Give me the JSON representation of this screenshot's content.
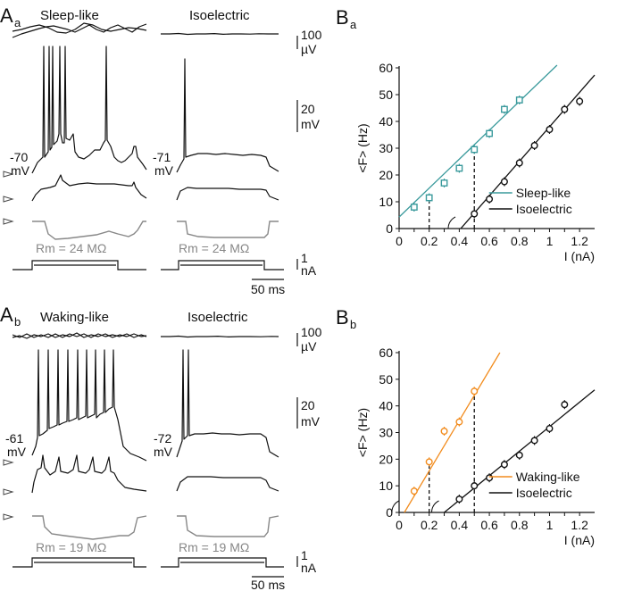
{
  "panels": {
    "Aa": {
      "letter": "A",
      "sub": "a",
      "title_left": "Sleep-like",
      "title_right": "Isoelectric",
      "vm_left": [
        "-70",
        "mV"
      ],
      "vm_right": [
        "-71",
        "mV"
      ],
      "rm_left": "Rm = 24 MΩ",
      "rm_right": "Rm = 24 MΩ"
    },
    "Ab": {
      "letter": "A",
      "sub": "b",
      "title_left": "Waking-like",
      "title_right": "Isoelectric",
      "vm_left": [
        "-61",
        "mV"
      ],
      "vm_right": [
        "-72",
        "mV"
      ],
      "rm_left": "Rm = 19 MΩ",
      "rm_right": "Rm = 19 MΩ"
    },
    "Ba": {
      "letter": "B",
      "sub": "a"
    },
    "Bb": {
      "letter": "B",
      "sub": "b"
    }
  },
  "scale_bars": {
    "lfp": [
      "100",
      "µV"
    ],
    "vm": [
      "20",
      "mV"
    ],
    "current": [
      "1",
      "nA"
    ],
    "time": "50 ms"
  },
  "colors": {
    "sleep": "#3a9a9c",
    "waking": "#f28c1e",
    "iso": "#111111",
    "grey_trace": "#888888"
  },
  "chart_data": [
    {
      "type": "scatter",
      "panel": "Ba",
      "xlabel": "I (nA)",
      "ylabel": "<F> (Hz)",
      "xlim": [
        0,
        1.3
      ],
      "ylim": [
        0,
        60
      ],
      "xticks": [
        "0",
        "0.1",
        "0.2",
        "0.3",
        "0.4",
        "0.5",
        "0.6",
        "0.7",
        "0.8",
        "0.9",
        "1",
        "1.1",
        "1.2"
      ],
      "yticks": [
        "0",
        "10",
        "20",
        "30",
        "40",
        "50",
        "60"
      ],
      "legend_position": "bottom-right",
      "series": [
        {
          "name": "Sleep-like",
          "color": "#3a9a9c",
          "square_markers": true,
          "x": [
            0.1,
            0.2,
            0.3,
            0.4,
            0.5,
            0.6,
            0.7,
            0.8
          ],
          "y": [
            8,
            11.5,
            17,
            22.5,
            29.5,
            35.5,
            44.5,
            48
          ],
          "fit": [
            [
              0,
              4.3
            ],
            [
              1.05,
              61
            ]
          ]
        },
        {
          "name": "Isoelectric",
          "color": "#111111",
          "square_markers": false,
          "x": [
            0.5,
            0.6,
            0.7,
            0.8,
            0.9,
            1.0,
            1.1,
            1.2
          ],
          "y": [
            5.5,
            11,
            17.5,
            24.5,
            31,
            37,
            44.5,
            47.5
          ],
          "fit": [
            [
              0.41,
              0
            ],
            [
              1.3,
              57.3
            ]
          ]
        }
      ],
      "dashed_x": [
        0.2,
        0.5
      ],
      "dashed_top": [
        11.2,
        29.3
      ]
    },
    {
      "type": "scatter",
      "panel": "Bb",
      "xlabel": "I (nA)",
      "ylabel": "<F> (Hz)",
      "xlim": [
        0,
        1.3
      ],
      "ylim": [
        0,
        60
      ],
      "xticks": [
        "0",
        "0.1",
        "0.2",
        "0.3",
        "0.4",
        "0.5",
        "0.6",
        "0.7",
        "0.8",
        "0.9",
        "1",
        "1.1",
        "1.2"
      ],
      "yticks": [
        "0",
        "10",
        "20",
        "30",
        "40",
        "50",
        "60"
      ],
      "legend_position": "bottom-right",
      "series": [
        {
          "name": "Waking-like",
          "color": "#f28c1e",
          "square_markers": false,
          "x": [
            0.1,
            0.2,
            0.3,
            0.4,
            0.5
          ],
          "y": [
            8,
            19,
            30.5,
            34,
            45.5
          ],
          "fit": [
            [
              0.035,
              0
            ],
            [
              0.67,
              60
            ]
          ]
        },
        {
          "name": "Isoelectric",
          "color": "#111111",
          "square_markers": false,
          "x": [
            0.4,
            0.5,
            0.6,
            0.7,
            0.8,
            0.9,
            1.0,
            1.1
          ],
          "y": [
            5,
            10,
            13,
            18,
            21.5,
            27,
            31.5,
            40.5
          ],
          "fit": [
            [
              0.3,
              0
            ],
            [
              1.3,
              46
            ]
          ]
        }
      ],
      "dashed_x": [
        0.2,
        0.5
      ],
      "dashed_top": [
        19,
        45.5
      ]
    }
  ]
}
